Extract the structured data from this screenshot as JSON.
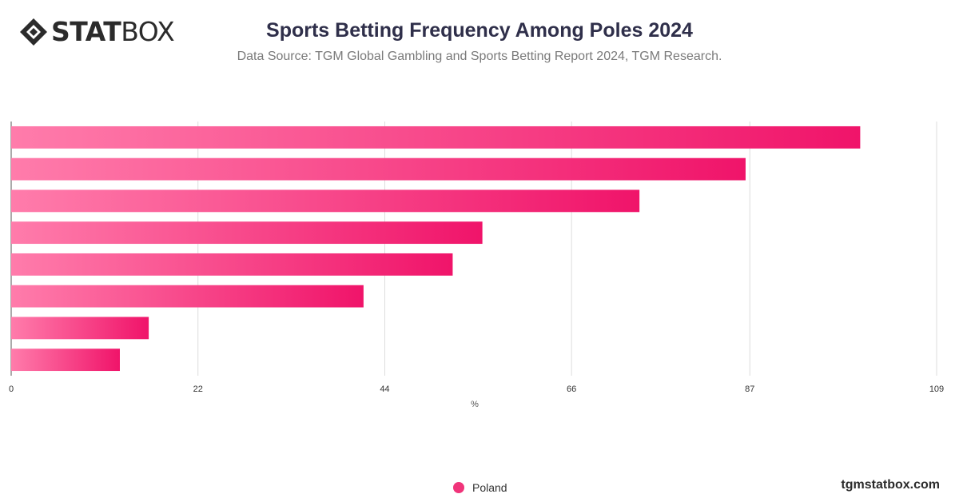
{
  "logo": {
    "bold": "STAT",
    "light": "BOX"
  },
  "chart_data": {
    "type": "bar",
    "orientation": "horizontal",
    "title": "Sports Betting Frequency Among Poles 2024",
    "subtitle": "Data Source: TGM Global Gambling and Sports Betting Report 2024, TGM Research.",
    "xlabel": "%",
    "ylabel": "",
    "xlim": [
      0,
      109
    ],
    "xticks": [
      0,
      22,
      44,
      66,
      87,
      109
    ],
    "grid": true,
    "legend_position": "bottom",
    "categories": [
      "",
      "",
      "",
      "",
      "",
      "",
      "",
      ""
    ],
    "series": [
      {
        "name": "Poland",
        "values": [
          100,
          86.5,
          74,
          55.5,
          52,
          41.5,
          16.2,
          12.8
        ]
      }
    ],
    "colors": {
      "start": "#ff7cab",
      "end": "#f0146a"
    }
  },
  "watermark": "tgmstatbox.com"
}
